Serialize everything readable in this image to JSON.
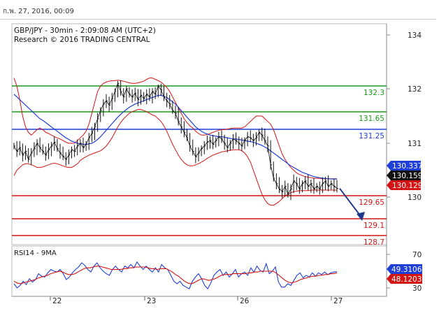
{
  "header": {
    "timestamp": "ก.พ. 27, 2016, 00:09"
  },
  "chart_data": [
    {
      "type": "line",
      "symbol": "GBP/JPY",
      "timeframe": "30min",
      "subtitle": "GBP/JPY - 30min - 2:09:08 AM (UTC+2)",
      "credit": "Research © 2016 TRADING CENTRAL",
      "x_ticks": [
        "22",
        "23",
        "26",
        "27"
      ],
      "ylim": [
        129.8,
        134.2
      ],
      "y_ticks": [
        "134",
        "132",
        "131",
        "130"
      ],
      "levels": [
        {
          "label": "132.3",
          "value": 132.3,
          "color": "#1a9a1a"
        },
        {
          "label": "131.65",
          "value": 131.65,
          "color": "#1a9a1a"
        },
        {
          "label": "131.25",
          "value": 131.25,
          "color": "#1f3fd6"
        },
        {
          "label": "129.65",
          "value": 129.65,
          "color": "#d21414"
        },
        {
          "label": "129.1",
          "value": 129.1,
          "color": "#d21414"
        },
        {
          "label": "128.7",
          "value": 128.7,
          "color": "#d21414"
        }
      ],
      "price_tags": [
        {
          "label": "130.337",
          "value": 130.337,
          "bg": "#1f3fd6",
          "fg": "#ffffff"
        },
        {
          "label": "130.159",
          "value": 130.159,
          "bg": "#111111",
          "fg": "#ffffff"
        },
        {
          "label": "130.129",
          "value": 130.129,
          "bg": "#d21414",
          "fg": "#ffffff"
        }
      ],
      "price_series": [
        130.95,
        130.85,
        130.92,
        130.78,
        130.85,
        130.7,
        130.82,
        130.9,
        131.0,
        130.92,
        130.85,
        130.78,
        130.88,
        130.95,
        131.02,
        130.9,
        130.82,
        130.76,
        130.7,
        130.78,
        130.88,
        130.85,
        130.95,
        131.0,
        130.92,
        130.98,
        131.1,
        131.18,
        131.3,
        131.45,
        131.6,
        131.72,
        131.78,
        131.7,
        131.82,
        131.95,
        132.2,
        131.95,
        131.85,
        132.0,
        131.9,
        131.85,
        131.92,
        131.8,
        131.88,
        131.82,
        131.9,
        131.85,
        131.95,
        131.9,
        132.1,
        131.98,
        131.85,
        131.78,
        131.72,
        131.6,
        131.55,
        131.4,
        131.3,
        131.2,
        131.1,
        130.95,
        130.85,
        130.75,
        130.82,
        130.9,
        130.95,
        131.02,
        131.05,
        130.98,
        131.05,
        131.12,
        131.08,
        131.0,
        130.92,
        131.0,
        131.08,
        131.05,
        131.0,
        130.95,
        131.05,
        131.12,
        131.1,
        131.05,
        131.1,
        131.2,
        131.15,
        131.05,
        130.95,
        130.6,
        130.35,
        130.25,
        130.15,
        130.1,
        130.2,
        130.05,
        130.15,
        130.3,
        130.25,
        130.15,
        130.25,
        130.3,
        130.2,
        130.25,
        130.15,
        130.2,
        130.15,
        130.25,
        130.3,
        130.2,
        130.25,
        130.2,
        130.16
      ],
      "ma_series": [
        131.9,
        131.85,
        131.8,
        131.75,
        131.7,
        131.65,
        131.6,
        131.55,
        131.5,
        131.45,
        131.42,
        131.38,
        131.34,
        131.3,
        131.26,
        131.22,
        131.18,
        131.14,
        131.1,
        131.07,
        131.04,
        131.02,
        131.0,
        130.99,
        130.98,
        130.98,
        130.99,
        131.0,
        131.03,
        131.07,
        131.12,
        131.18,
        131.24,
        131.3,
        131.36,
        131.42,
        131.48,
        131.53,
        131.58,
        131.62,
        131.66,
        131.69,
        131.72,
        131.74,
        131.76,
        131.78,
        131.8,
        131.82,
        131.84,
        131.86,
        131.88,
        131.88,
        131.86,
        131.84,
        131.8,
        131.76,
        131.72,
        131.66,
        131.6,
        131.54,
        131.48,
        131.42,
        131.36,
        131.3,
        131.26,
        131.22,
        131.19,
        131.17,
        131.15,
        131.14,
        131.13,
        131.12,
        131.12,
        131.11,
        131.1,
        131.09,
        131.08,
        131.08,
        131.07,
        131.06,
        131.05,
        131.04,
        131.03,
        131.02,
        131.0,
        130.98,
        130.96,
        130.93,
        130.9,
        130.86,
        130.82,
        130.78,
        130.74,
        130.7,
        130.66,
        130.62,
        130.58,
        130.55,
        130.52,
        130.49,
        130.46,
        130.44,
        130.42,
        130.4,
        130.38,
        130.37,
        130.36,
        130.35,
        130.345,
        130.34,
        130.338,
        130.337,
        130.337
      ],
      "bb_upper": [
        132.4,
        132.1,
        131.8,
        131.5,
        131.3,
        131.2,
        131.15,
        131.2,
        131.25,
        131.28,
        131.25,
        131.2,
        131.18,
        131.15,
        131.12,
        131.1,
        131.08,
        131.05,
        131.02,
        131.0,
        131.0,
        131.0,
        131.05,
        131.1,
        131.15,
        131.22,
        131.35,
        131.55,
        131.75,
        131.95,
        132.1,
        132.2,
        132.25,
        132.28,
        132.3,
        132.3,
        132.32,
        132.3,
        132.28,
        132.25,
        132.22,
        132.2,
        132.2,
        132.22,
        132.25,
        132.28,
        132.35,
        132.4,
        132.4,
        132.35,
        132.3,
        132.25,
        132.15,
        132.05,
        131.95,
        131.85,
        131.75,
        131.65,
        131.55,
        131.45,
        131.38,
        131.32,
        131.28,
        131.22,
        131.18,
        131.15,
        131.15,
        131.16,
        131.18,
        131.2,
        131.22,
        131.24,
        131.25,
        131.25,
        131.26,
        131.27,
        131.28,
        131.28,
        131.28,
        131.28,
        131.3,
        131.35,
        131.4,
        131.45,
        131.5,
        131.5,
        131.5,
        131.45,
        131.4,
        131.35,
        131.25,
        131.1,
        130.95,
        130.8,
        130.7,
        130.62,
        130.55,
        130.5,
        130.45,
        130.42,
        130.4,
        130.38,
        130.37,
        130.36,
        130.35,
        130.35,
        130.35,
        130.34,
        130.34,
        130.34,
        130.34,
        130.34,
        130.34
      ],
      "bb_lower": [
        130.4,
        130.5,
        130.55,
        130.6,
        130.62,
        130.62,
        130.6,
        130.58,
        130.55,
        130.55,
        130.56,
        130.58,
        130.6,
        130.62,
        130.63,
        130.62,
        130.6,
        130.58,
        130.56,
        130.55,
        130.55,
        130.58,
        130.62,
        130.68,
        130.72,
        130.75,
        130.78,
        130.8,
        130.82,
        130.84,
        130.86,
        130.9,
        130.95,
        131.02,
        131.1,
        131.2,
        131.3,
        131.38,
        131.45,
        131.5,
        131.55,
        131.58,
        131.6,
        131.62,
        131.62,
        131.6,
        131.58,
        131.55,
        131.52,
        131.5,
        131.45,
        131.4,
        131.32,
        131.22,
        131.1,
        130.98,
        130.88,
        130.78,
        130.7,
        130.64,
        130.6,
        130.58,
        130.58,
        130.6,
        130.62,
        130.65,
        130.68,
        130.72,
        130.75,
        130.78,
        130.8,
        130.82,
        130.84,
        130.85,
        130.86,
        130.87,
        130.88,
        130.88,
        130.88,
        130.86,
        130.82,
        130.75,
        130.65,
        130.5,
        130.35,
        130.2,
        130.05,
        129.95,
        129.88,
        129.85,
        129.85,
        129.88,
        129.92,
        129.97,
        130.02,
        130.06,
        130.08,
        130.1,
        130.11,
        130.12,
        130.12,
        130.12,
        130.12,
        130.13,
        130.13,
        130.13,
        130.13,
        130.13,
        130.13,
        130.13,
        130.13,
        130.13,
        130.13
      ],
      "forecast": {
        "from": 130.16,
        "to": 129.15
      }
    },
    {
      "type": "line",
      "title": "RSI14 - 9MA",
      "y_ticks": [
        "70",
        "30"
      ],
      "ylim": [
        20,
        80
      ],
      "value_tags": [
        {
          "label": "49.3106",
          "value": 49.31,
          "bg": "#1f3fd6",
          "fg": "#ffffff"
        },
        {
          "label": "48.1203",
          "value": 48.12,
          "bg": "#d21414",
          "fg": "#ffffff"
        }
      ],
      "rsi_series": [
        35,
        30,
        33,
        38,
        34,
        41,
        37,
        40,
        47,
        44,
        43,
        48,
        52,
        50,
        49,
        52,
        47,
        40,
        43,
        48,
        52,
        55,
        60,
        57,
        52,
        49,
        56,
        60,
        54,
        50,
        47,
        45,
        52,
        56,
        52,
        49,
        56,
        54,
        58,
        54,
        61,
        56,
        52,
        56,
        52,
        49,
        54,
        49,
        58,
        54,
        52,
        45,
        38,
        35,
        38,
        33,
        31,
        29,
        38,
        43,
        47,
        41,
        33,
        29,
        36,
        45,
        49,
        52,
        45,
        49,
        43,
        47,
        52,
        43,
        47,
        49,
        45,
        54,
        49,
        56,
        51,
        49,
        59,
        47,
        50,
        55,
        37,
        31,
        31,
        35,
        33,
        39,
        45,
        48,
        42,
        45,
        43,
        48,
        44,
        48,
        46,
        49,
        46,
        48,
        49,
        49.3
      ],
      "ma_series": [
        38,
        36,
        35,
        36,
        37,
        38,
        39,
        40,
        42,
        43,
        44,
        45,
        47,
        48,
        49,
        50,
        49,
        47,
        46,
        46,
        47,
        49,
        51,
        53,
        54,
        54,
        55,
        56,
        56,
        55,
        54,
        53,
        52,
        52,
        52,
        52,
        53,
        53,
        54,
        54,
        55,
        55,
        55,
        55,
        54,
        53,
        53,
        52,
        53,
        53,
        53,
        51,
        49,
        46,
        44,
        41,
        38,
        36,
        35,
        36,
        38,
        40,
        41,
        40,
        39,
        40,
        41,
        43,
        45,
        46,
        46,
        46,
        47,
        47,
        47,
        47,
        47,
        48,
        48,
        49,
        49,
        50,
        50,
        50,
        50,
        50,
        48,
        45,
        42,
        39,
        37,
        36,
        37,
        38,
        40,
        41,
        42,
        43,
        44,
        44,
        45,
        45,
        46,
        46,
        47,
        47,
        48.1
      ]
    }
  ]
}
